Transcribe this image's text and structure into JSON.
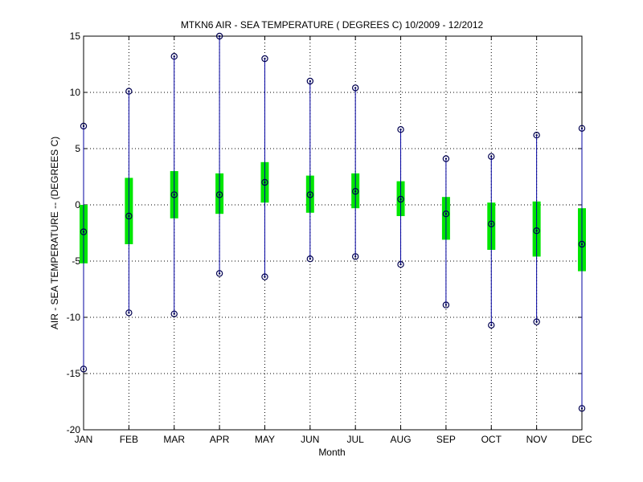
{
  "chart_data": {
    "type": "box",
    "title": "MTKN6  AIR - SEA TEMPERATURE ( DEGREES C) 10/2009 - 12/2012",
    "xlabel": "Month",
    "ylabel": "AIR - SEA TEMPERATURE -- (DEGREES C)",
    "categories": [
      "JAN",
      "FEB",
      "MAR",
      "APR",
      "MAY",
      "JUN",
      "JUL",
      "AUG",
      "SEP",
      "OCT",
      "NOV",
      "DEC"
    ],
    "ylim": [
      -20,
      15
    ],
    "yticks": [
      -20,
      -15,
      -10,
      -5,
      0,
      5,
      10,
      15
    ],
    "grid": true,
    "series": [
      {
        "stat": "max",
        "values": [
          7.0,
          10.1,
          13.2,
          15.0,
          13.0,
          11.0,
          10.4,
          6.7,
          4.1,
          4.3,
          6.2,
          6.8
        ]
      },
      {
        "stat": "q3",
        "values": [
          0.0,
          2.4,
          3.0,
          2.8,
          3.8,
          2.6,
          2.8,
          2.1,
          0.7,
          0.2,
          0.3,
          -0.3
        ]
      },
      {
        "stat": "median",
        "values": [
          -2.4,
          -1.0,
          0.9,
          0.9,
          2.0,
          0.9,
          1.2,
          0.5,
          -0.8,
          -1.7,
          -2.3,
          -3.5
        ]
      },
      {
        "stat": "q1",
        "values": [
          -5.2,
          -3.5,
          -1.2,
          -0.8,
          0.2,
          -0.7,
          -0.3,
          -1.0,
          -3.1,
          -4.0,
          -4.6,
          -5.9
        ]
      },
      {
        "stat": "min",
        "values": [
          -14.6,
          -9.6,
          -9.7,
          -6.1,
          -6.4,
          -4.8,
          -4.6,
          -5.3,
          -8.9,
          -10.7,
          -10.4,
          -18.1
        ]
      }
    ],
    "colors": {
      "whisker": "#0000a0",
      "box": "#00e600",
      "marker": "#000050",
      "grid": "#000000"
    }
  }
}
